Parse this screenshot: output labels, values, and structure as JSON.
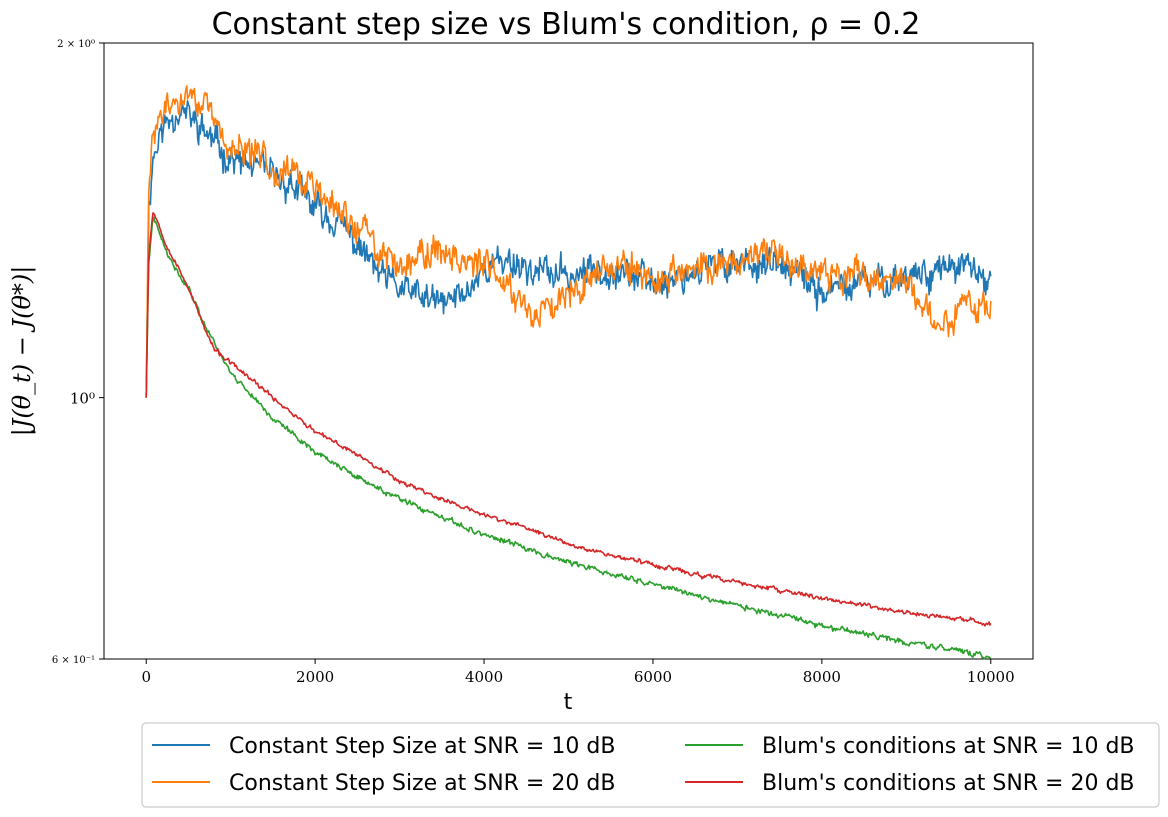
{
  "chart_data": {
    "type": "line",
    "title": "Constant step size vs Blum's condition, ρ = 0.2",
    "xlabel": "t",
    "ylabel": "|J(θ_t) − J(θ*)|",
    "yscale": "log",
    "xlim": [
      -500,
      10500
    ],
    "ylim": [
      0.6,
      2.0
    ],
    "xticks": [
      0,
      2000,
      4000,
      6000,
      8000,
      10000
    ],
    "xtick_labels": [
      "0",
      "2000",
      "4000",
      "6000",
      "8000",
      "10000"
    ],
    "yticks": [
      {
        "value": 2.0,
        "label": "2 × 10⁰"
      },
      {
        "value": 1.0,
        "label": "10⁰"
      },
      {
        "value": 0.6,
        "label": "6 × 10⁻¹"
      }
    ],
    "legend_position": "below",
    "series": [
      {
        "name": "Constant Step Size at SNR = 10 dB",
        "color": "#1f77b4",
        "noise": 0.035,
        "seed": 11,
        "x": [
          0,
          30,
          80,
          150,
          250,
          400,
          550,
          700,
          900,
          1100,
          1300,
          1500,
          1700,
          2000,
          2300,
          2600,
          2800,
          3000,
          3200,
          3500,
          3800,
          4000,
          4300,
          4600,
          5000,
          5500,
          6000,
          6500,
          7000,
          7500,
          8000,
          8500,
          9000,
          9500,
          9800,
          10000
        ],
        "y": [
          1.0,
          1.45,
          1.6,
          1.66,
          1.72,
          1.76,
          1.72,
          1.68,
          1.62,
          1.58,
          1.57,
          1.54,
          1.52,
          1.45,
          1.4,
          1.32,
          1.26,
          1.24,
          1.22,
          1.2,
          1.23,
          1.29,
          1.31,
          1.28,
          1.27,
          1.29,
          1.25,
          1.28,
          1.31,
          1.29,
          1.23,
          1.25,
          1.27,
          1.29,
          1.28,
          1.24
        ]
      },
      {
        "name": "Constant Step Size at SNR = 20 dB",
        "color": "#ff7f0e",
        "noise": 0.035,
        "seed": 29,
        "x": [
          0,
          30,
          80,
          150,
          250,
          400,
          550,
          700,
          900,
          1100,
          1300,
          1500,
          1700,
          2000,
          2300,
          2600,
          2800,
          3000,
          3300,
          3600,
          4000,
          4300,
          4600,
          5000,
          5500,
          6000,
          6500,
          7000,
          7500,
          8000,
          8500,
          9000,
          9400,
          9700,
          10000
        ],
        "y": [
          1.0,
          1.48,
          1.66,
          1.73,
          1.76,
          1.78,
          1.82,
          1.76,
          1.66,
          1.62,
          1.6,
          1.58,
          1.56,
          1.5,
          1.43,
          1.38,
          1.32,
          1.3,
          1.33,
          1.33,
          1.29,
          1.25,
          1.17,
          1.24,
          1.3,
          1.26,
          1.28,
          1.31,
          1.32,
          1.28,
          1.27,
          1.25,
          1.15,
          1.2,
          1.18
        ]
      },
      {
        "name": "Blum's conditions at SNR = 10 dB",
        "color": "#2ca02c",
        "noise": 0.006,
        "seed": 41,
        "x": [
          0,
          30,
          80,
          120,
          200,
          300,
          500,
          700,
          1000,
          1500,
          2000,
          2500,
          3000,
          3500,
          4000,
          4500,
          5000,
          5500,
          6000,
          6500,
          7000,
          7500,
          8000,
          8500,
          9000,
          9500,
          10000
        ],
        "y": [
          1.0,
          1.3,
          1.42,
          1.4,
          1.35,
          1.3,
          1.24,
          1.15,
          1.05,
          0.96,
          0.9,
          0.855,
          0.82,
          0.79,
          0.765,
          0.745,
          0.725,
          0.708,
          0.695,
          0.68,
          0.666,
          0.653,
          0.64,
          0.63,
          0.62,
          0.612,
          0.602
        ]
      },
      {
        "name": "Blum's conditions at SNR = 20 dB",
        "color": "#d62728",
        "noise": 0.005,
        "seed": 53,
        "x": [
          0,
          30,
          80,
          120,
          200,
          300,
          500,
          700,
          800,
          1000,
          1500,
          2000,
          2500,
          3000,
          3500,
          4000,
          4500,
          5000,
          5500,
          6000,
          6500,
          7000,
          7500,
          8000,
          8500,
          9000,
          9500,
          10000
        ],
        "y": [
          1.0,
          1.32,
          1.44,
          1.42,
          1.37,
          1.32,
          1.24,
          1.14,
          1.1,
          1.07,
          1.0,
          0.935,
          0.895,
          0.85,
          0.82,
          0.795,
          0.775,
          0.752,
          0.735,
          0.722,
          0.708,
          0.697,
          0.686,
          0.676,
          0.666,
          0.657,
          0.65,
          0.643
        ]
      }
    ]
  }
}
